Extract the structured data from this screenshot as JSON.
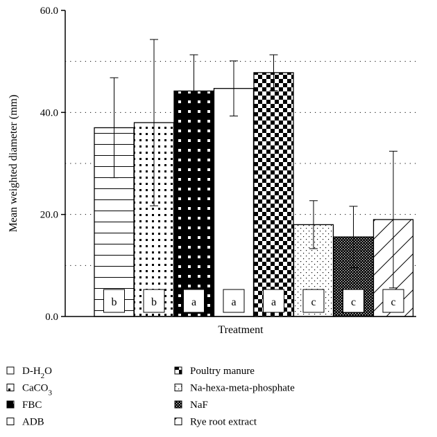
{
  "chart_data": {
    "type": "bar",
    "ylabel": "Mean weighted diameter (mm)",
    "xlabel": "Treatment",
    "ylim": [
      0,
      60
    ],
    "yticks": [
      "0.0",
      "20.0",
      "40.0",
      "60.0"
    ],
    "grid": "dotted horizontal at 10-unit intervals",
    "legend_placement": "bottom",
    "categories": [
      "D-H2O",
      "CaCO3",
      "FBC",
      "ADB",
      "Poultry manure",
      "Na-hexa-meta-phosphate",
      "NaF",
      "Rye root extract"
    ],
    "series": [
      {
        "values": [
          37.0,
          38.0,
          44.2,
          44.7,
          47.8,
          18.0,
          15.6,
          19.0
        ],
        "error": [
          9.8,
          16.3,
          7.1,
          5.4,
          3.5,
          4.7,
          6.0,
          13.4
        ],
        "letters": [
          "b",
          "b",
          "a",
          "a",
          "a",
          "c",
          "c",
          "c"
        ],
        "patterns": [
          "hlines",
          "dots-sparse",
          "black-dots",
          "white",
          "checker",
          "dots-fine",
          "dense-crosshatch",
          "diagonal"
        ]
      }
    ],
    "legend": {
      "left": [
        {
          "base": "D-H",
          "sub": "2",
          "tail": "O",
          "pattern": "hlines"
        },
        {
          "base": "CaCO",
          "sub": "3",
          "tail": "",
          "pattern": "dots-sparse"
        },
        {
          "base": "FBC",
          "sub": "",
          "tail": "",
          "pattern": "black-dots"
        },
        {
          "base": "ADB",
          "sub": "",
          "tail": "",
          "pattern": "white"
        }
      ],
      "right": [
        {
          "base": "Poultry manure",
          "sub": "",
          "tail": "",
          "pattern": "checker"
        },
        {
          "base": "Na-hexa-meta-phosphate",
          "sub": "",
          "tail": "",
          "pattern": "dots-fine"
        },
        {
          "base": "NaF",
          "sub": "",
          "tail": "",
          "pattern": "dense-crosshatch"
        },
        {
          "base": "Rye root extract",
          "sub": "",
          "tail": "",
          "pattern": "diagonal"
        }
      ]
    }
  }
}
